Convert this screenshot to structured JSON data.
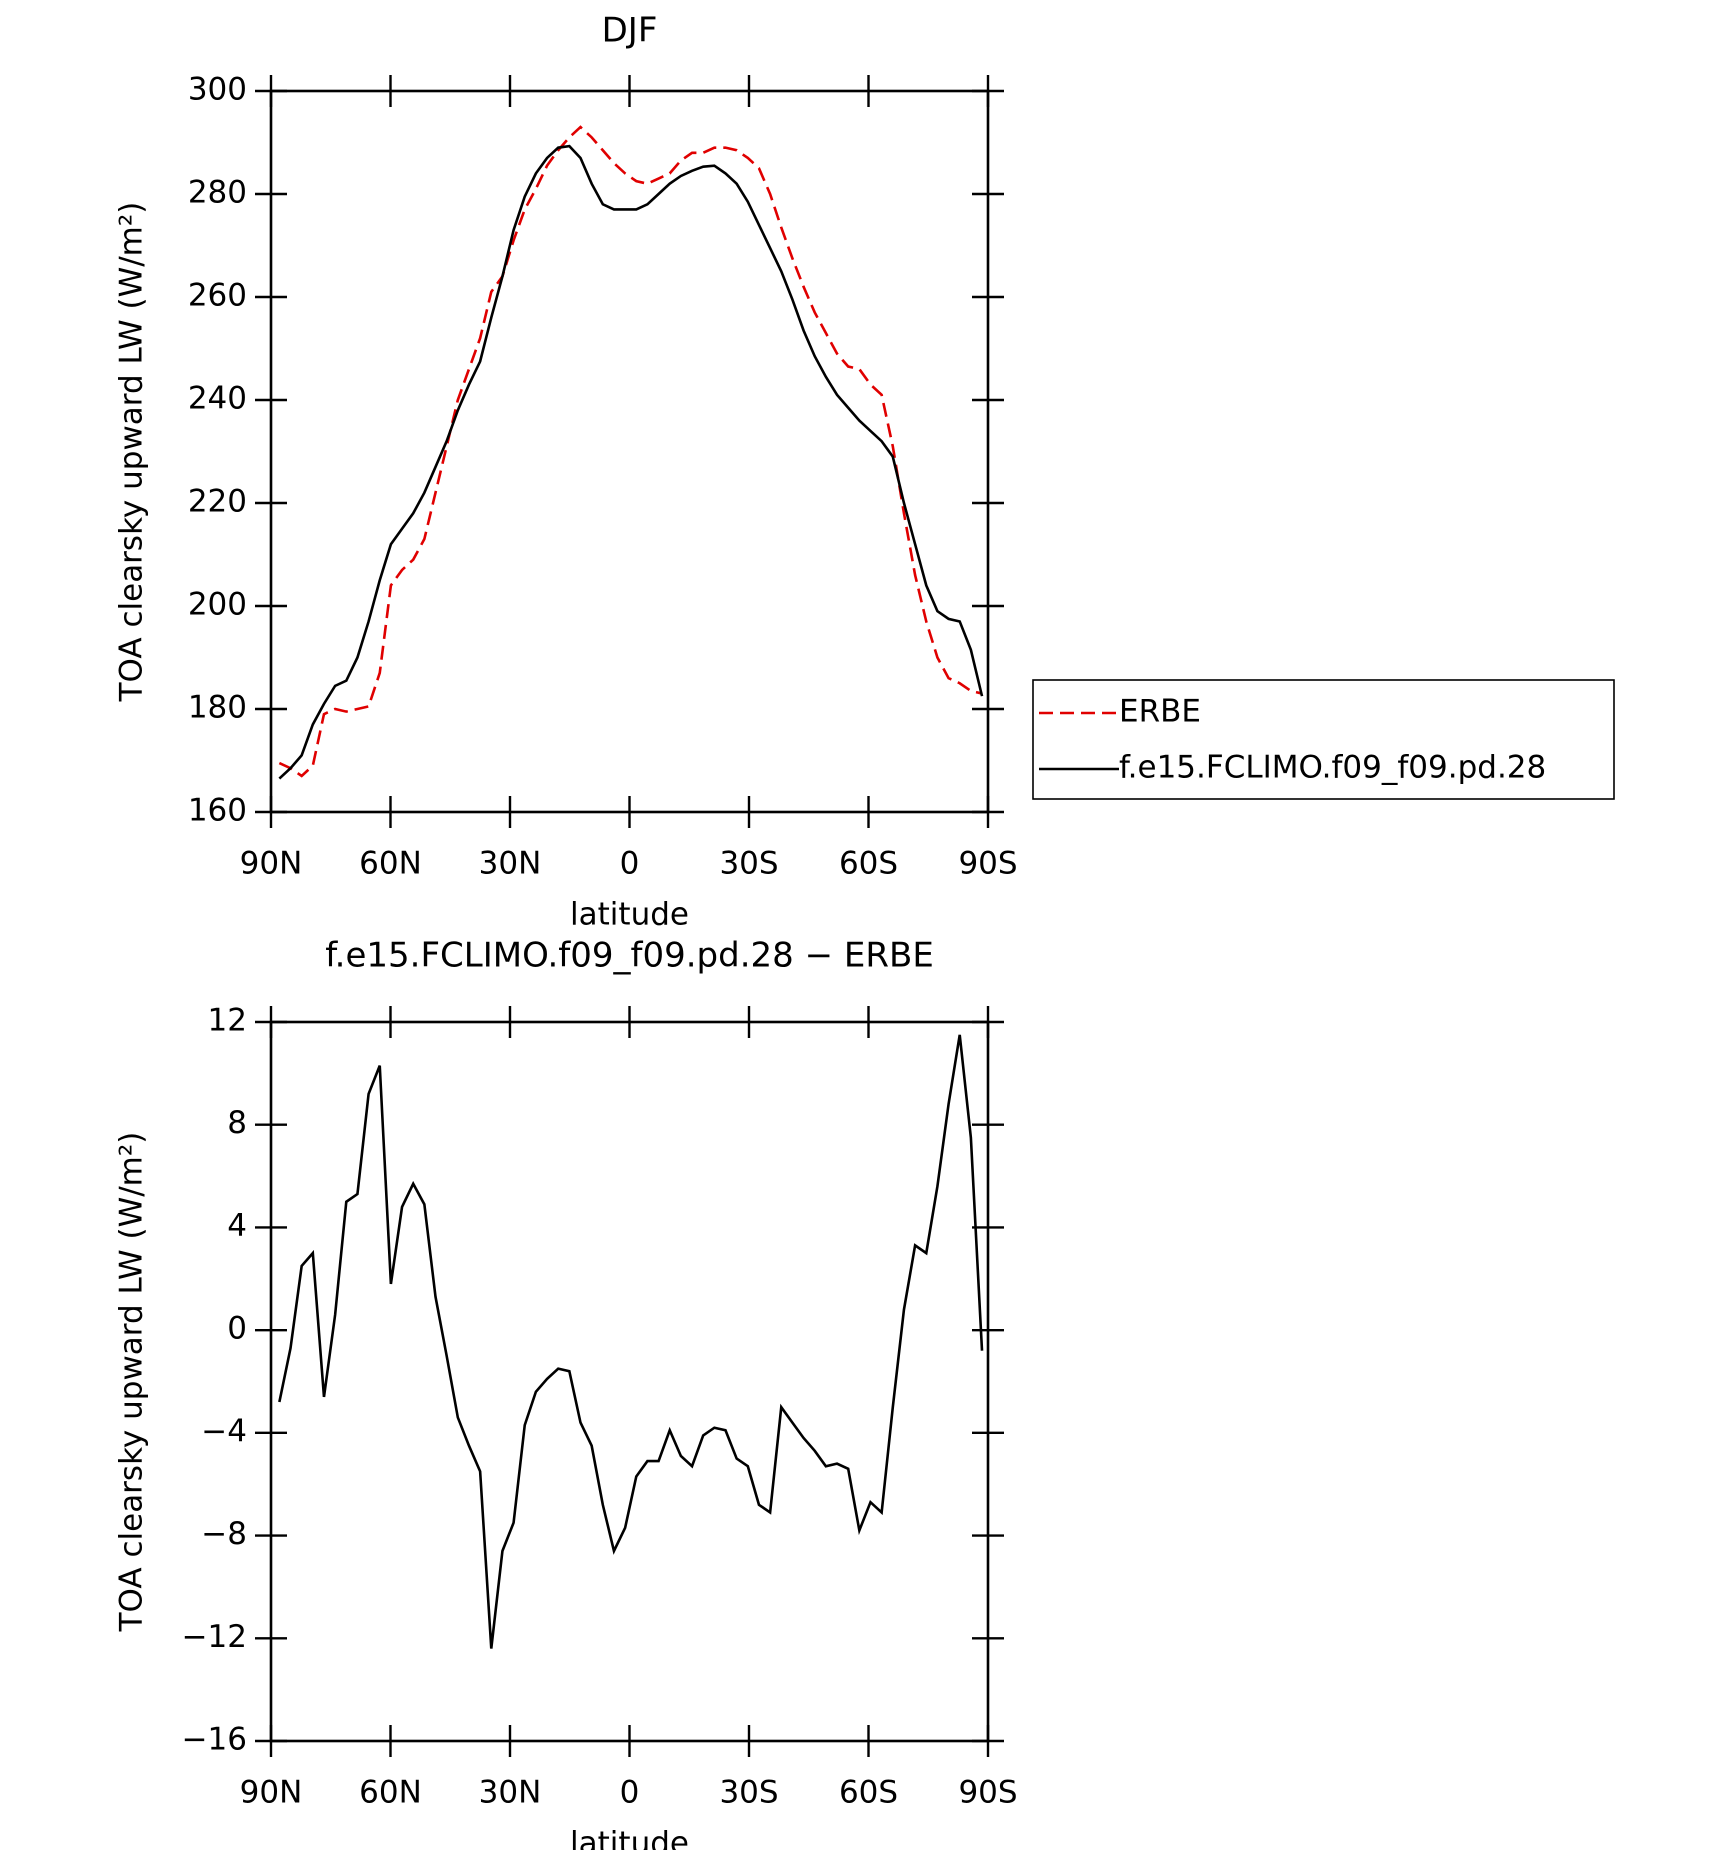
{
  "chart_data": [
    {
      "type": "line",
      "title": "DJF",
      "x_label": "latitude",
      "y_label": "TOA clearsky upward LW (W/m²)",
      "xlim": [
        90,
        -90
      ],
      "xticks": [
        {
          "value": 90,
          "label": "90N"
        },
        {
          "value": 60,
          "label": "60N"
        },
        {
          "value": 30,
          "label": "30N"
        },
        0,
        {
          "value": -30,
          "label": "30S"
        },
        {
          "value": -60,
          "label": "60S"
        },
        {
          "value": -90,
          "label": "90S"
        }
      ],
      "ylim": [
        160,
        300
      ],
      "yticks": [
        160,
        180,
        200,
        220,
        240,
        260,
        280,
        300
      ],
      "legend": "right",
      "x": [
        87.9,
        85.1,
        82.3,
        79.5,
        76.7,
        73.9,
        71.1,
        68.3,
        65.5,
        62.7,
        59.9,
        57.1,
        54.3,
        51.5,
        48.7,
        45.9,
        43.1,
        40.3,
        37.5,
        34.7,
        31.9,
        29.1,
        26.3,
        23.5,
        20.7,
        17.9,
        15.1,
        12.3,
        9.5,
        6.7,
        3.9,
        1.1,
        -1.7,
        -4.5,
        -7.3,
        -10.1,
        -12.9,
        -15.7,
        -18.5,
        -21.3,
        -24.1,
        -26.9,
        -29.7,
        -32.5,
        -35.3,
        -38.1,
        -40.9,
        -43.7,
        -46.5,
        -49.3,
        -52.1,
        -54.9,
        -57.7,
        -60.5,
        -63.3,
        -66.1,
        -68.9,
        -71.7,
        -74.5,
        -77.3,
        -80.1,
        -82.9,
        -85.7,
        -88.5
      ],
      "series": [
        {
          "name": "ERBE",
          "color": "#e00000",
          "line_style": "dashed",
          "values": [
            169.5,
            168.5,
            167,
            169,
            179,
            180,
            179.5,
            180,
            180.5,
            187,
            204,
            207,
            209,
            213,
            222,
            231,
            240,
            246,
            252,
            261,
            264,
            271,
            277,
            281,
            285.5,
            288.5,
            291,
            293,
            291,
            288.5,
            286,
            284,
            282.5,
            282,
            283,
            284,
            286.5,
            288,
            288,
            289,
            289,
            288.5,
            287,
            285,
            280,
            273.5,
            267.5,
            262,
            257,
            253,
            249,
            246.5,
            246,
            243,
            241,
            231,
            218,
            206,
            197,
            190,
            186,
            185,
            183.5,
            183
          ]
        },
        {
          "name": "f.e15.FCLIMO.f09_f09.pd.28",
          "color": "#000000",
          "line_style": "solid",
          "values": [
            166.5,
            168.5,
            171,
            177,
            181,
            184.5,
            185.5,
            190,
            197,
            205,
            212,
            215,
            218,
            222,
            227,
            232,
            238,
            243,
            247.5,
            256,
            264,
            273,
            279.5,
            284,
            287,
            289,
            289.3,
            287,
            282,
            278,
            277,
            277,
            277,
            278,
            280,
            282,
            283.5,
            284.5,
            285.3,
            285.5,
            284,
            282,
            278.5,
            274,
            269.5,
            265,
            259.5,
            253.5,
            248.5,
            244.5,
            241,
            238.5,
            236,
            234,
            232,
            229,
            220,
            212,
            204,
            199,
            197.5,
            197,
            191.5,
            182.5
          ]
        }
      ]
    },
    {
      "type": "line",
      "title": "f.e15.FCLIMO.f09_f09.pd.28 − ERBE",
      "x_label": "latitude",
      "y_label": "TOA clearsky upward LW (W/m²)",
      "xlim": [
        90,
        -90
      ],
      "xticks": [
        {
          "value": 90,
          "label": "90N"
        },
        {
          "value": 60,
          "label": "60N"
        },
        {
          "value": 30,
          "label": "30N"
        },
        0,
        {
          "value": -30,
          "label": "30S"
        },
        {
          "value": -60,
          "label": "60S"
        },
        {
          "value": -90,
          "label": "90S"
        }
      ],
      "ylim": [
        -16,
        12
      ],
      "yticks": [
        {
          "value": -16,
          "label": "−16"
        },
        {
          "value": -12,
          "label": "−12"
        },
        {
          "value": -8,
          "label": "−8"
        },
        {
          "value": -4,
          "label": "−4"
        },
        0,
        4,
        8,
        12
      ],
      "x": [
        87.9,
        85.1,
        82.3,
        79.5,
        76.7,
        73.9,
        71.1,
        68.3,
        65.5,
        62.7,
        59.9,
        57.1,
        54.3,
        51.5,
        48.7,
        45.9,
        43.1,
        40.3,
        37.5,
        34.7,
        31.9,
        29.1,
        26.3,
        23.5,
        20.7,
        17.9,
        15.1,
        12.3,
        9.5,
        6.7,
        3.9,
        1.1,
        -1.7,
        -4.5,
        -7.3,
        -10.1,
        -12.9,
        -15.7,
        -18.5,
        -21.3,
        -24.1,
        -26.9,
        -29.7,
        -32.5,
        -35.3,
        -38.1,
        -40.9,
        -43.7,
        -46.5,
        -49.3,
        -52.1,
        -54.9,
        -57.7,
        -60.5,
        -63.3,
        -66.1,
        -68.9,
        -71.7,
        -74.5,
        -77.3,
        -80.1,
        -82.9,
        -85.7,
        -88.5
      ],
      "series": [
        {
          "color": "#000000",
          "line_style": "solid",
          "values": [
            -2.8,
            -0.7,
            2.5,
            3.0,
            -2.6,
            0.6,
            5.0,
            5.3,
            9.2,
            10.3,
            1.8,
            4.8,
            5.7,
            4.9,
            1.3,
            -1.0,
            -3.4,
            -4.5,
            -5.5,
            -12.4,
            -8.6,
            -7.5,
            -3.7,
            -2.4,
            -1.9,
            -1.5,
            -1.6,
            -3.6,
            -4.5,
            -6.8,
            -8.6,
            -7.7,
            -5.7,
            -5.1,
            -5.1,
            -3.9,
            -4.9,
            -5.3,
            -4.1,
            -3.8,
            -3.9,
            -5.0,
            -5.3,
            -6.8,
            -7.1,
            -3.0,
            -3.6,
            -4.2,
            -4.7,
            -5.3,
            -5.2,
            -5.4,
            -7.8,
            -6.7,
            -7.1,
            -3.0,
            0.8,
            3.3,
            3.0,
            5.6,
            8.8,
            11.5,
            7.5,
            -0.8
          ]
        }
      ]
    }
  ]
}
